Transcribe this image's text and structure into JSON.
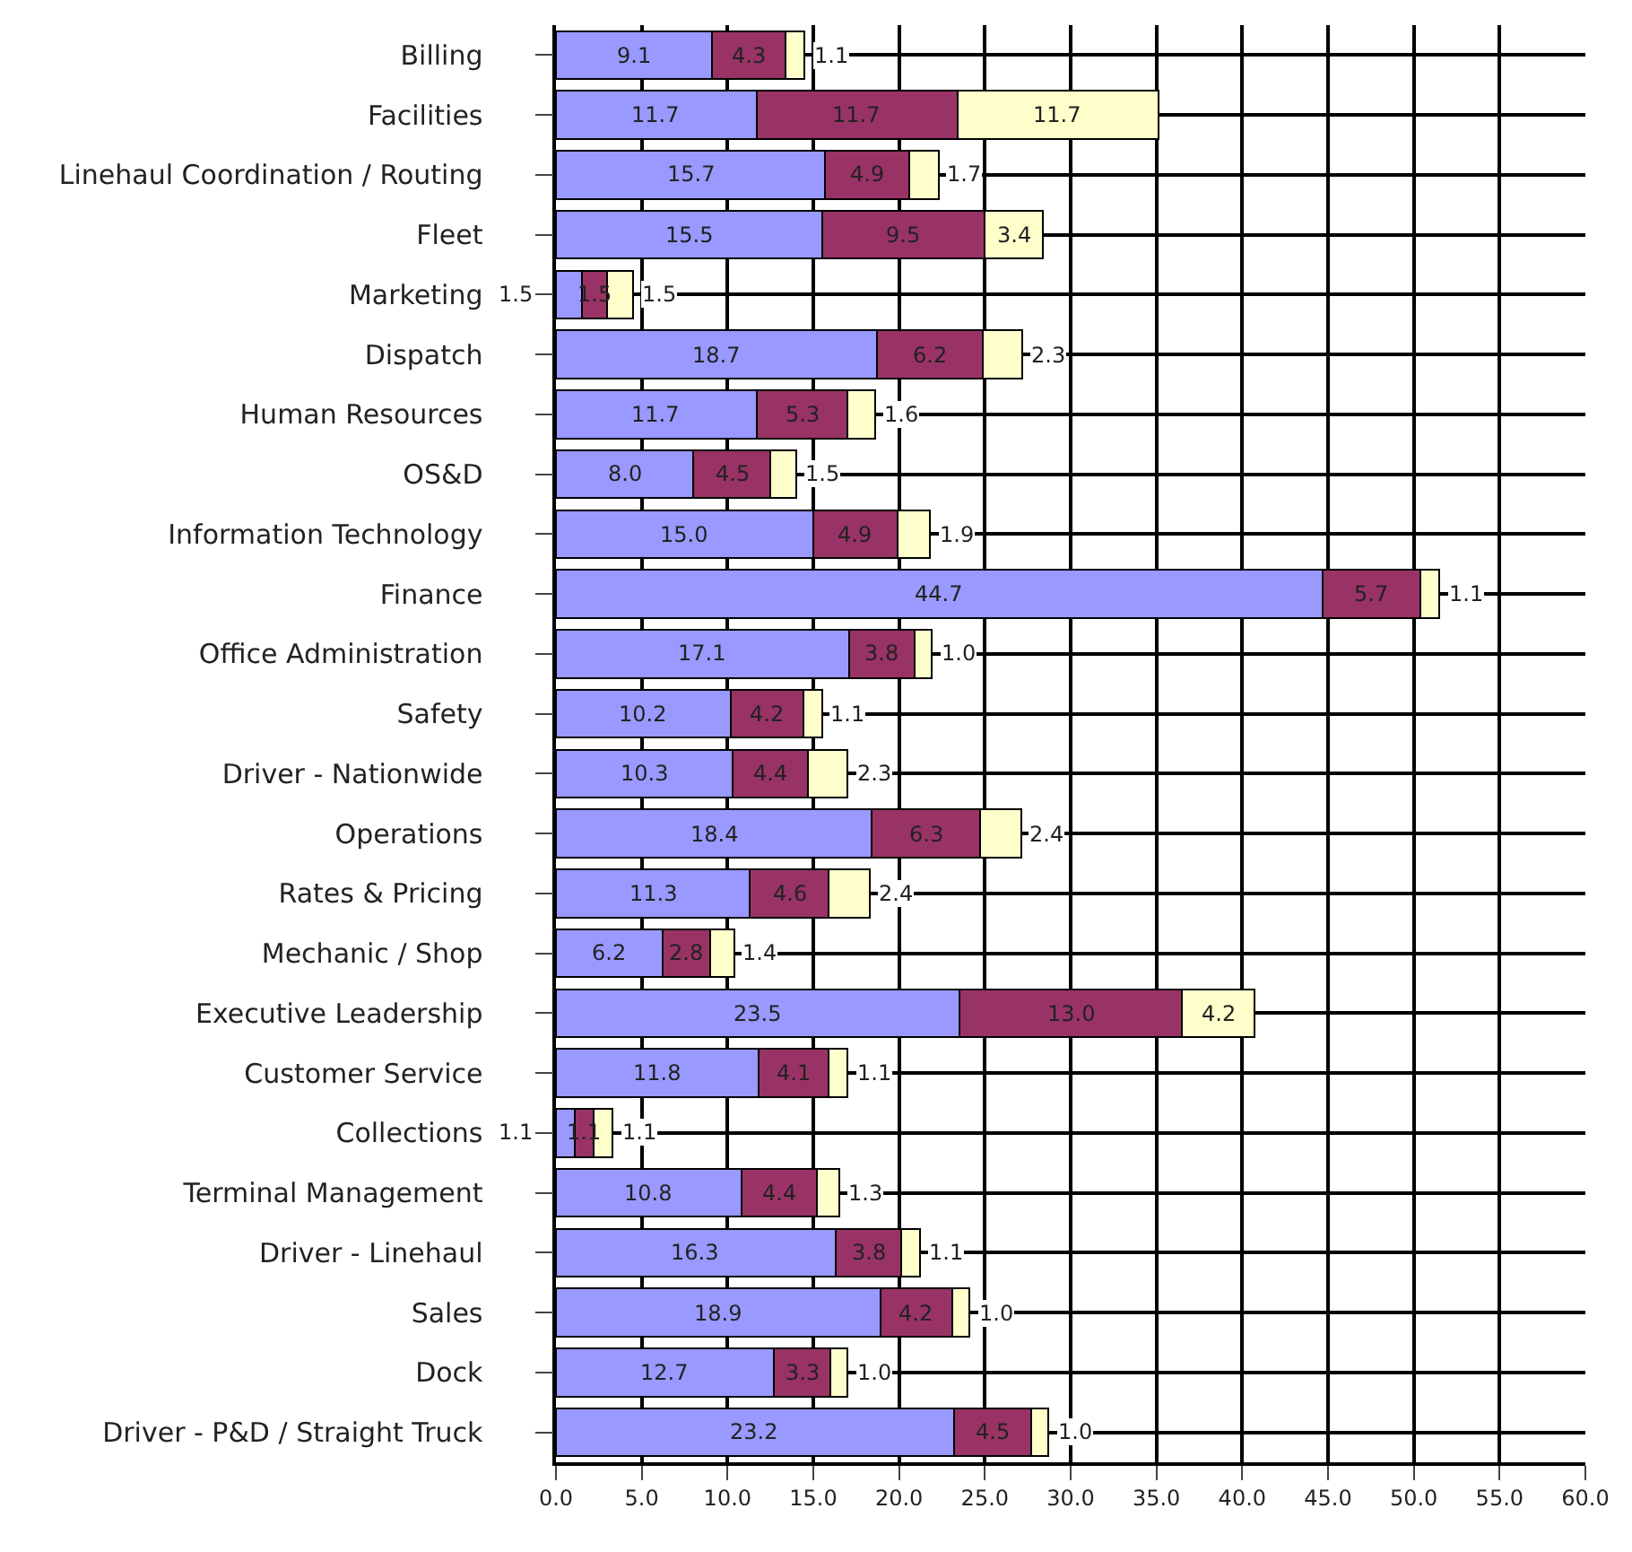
{
  "chart_data": {
    "type": "bar",
    "orientation": "horizontal",
    "stacked": true,
    "grid": true,
    "categories": [
      "Billing",
      "Facilities",
      "Linehaul Coordination / Routing",
      "Fleet",
      "Marketing",
      "Dispatch",
      "Human Resources",
      "OS&D",
      "Information Technology",
      "Finance",
      "Office Administration",
      "Safety",
      "Driver - Nationwide",
      "Operations",
      "Rates & Pricing",
      "Mechanic / Shop",
      "Executive Leadership",
      "Customer Service",
      "Collections",
      "Terminal Management",
      "Driver - Linehaul",
      "Sales",
      "Dock",
      "Driver - P&D / Straight Truck"
    ],
    "series": [
      {
        "color": "#9999ff",
        "values": [
          9.1,
          11.7,
          15.7,
          15.5,
          1.5,
          18.7,
          11.7,
          8.0,
          15.0,
          44.7,
          17.1,
          10.2,
          10.3,
          18.4,
          11.3,
          6.2,
          23.5,
          11.8,
          1.1,
          10.8,
          16.3,
          18.9,
          12.7,
          23.2
        ],
        "value_labels": [
          "9.1",
          "11.7",
          "15.7",
          "15.5",
          "1.5",
          "18.7",
          "11.7",
          "8.0",
          "15.0",
          "44.7",
          "17.1",
          "10.2",
          "10.3",
          "18.4",
          "11.3",
          "6.2",
          "23.5",
          "11.8",
          "1.1",
          "10.8",
          "16.3",
          "18.9",
          "12.7",
          "23.2"
        ]
      },
      {
        "color": "#993366",
        "values": [
          4.3,
          11.7,
          4.9,
          9.5,
          1.5,
          6.2,
          5.3,
          4.5,
          4.9,
          5.7,
          3.8,
          4.2,
          4.4,
          6.3,
          4.6,
          2.8,
          13.0,
          4.1,
          1.1,
          4.4,
          3.8,
          4.2,
          3.3,
          4.5
        ],
        "value_labels": [
          "4.3",
          "11.7",
          "4.9",
          "9.5",
          "1.5",
          "6.2",
          "5.3",
          "4.5",
          "4.9",
          "5.7",
          "3.8",
          "4.2",
          "4.4",
          "6.3",
          "4.6",
          "2.8",
          "13.0",
          "4.1",
          "1.1",
          "4.4",
          "3.8",
          "4.2",
          "3.3",
          "4.5"
        ]
      },
      {
        "color": "#ffffcc",
        "values": [
          1.1,
          11.7,
          1.7,
          3.4,
          1.5,
          2.3,
          1.6,
          1.5,
          1.9,
          1.1,
          1.0,
          1.1,
          2.3,
          2.4,
          2.4,
          1.4,
          4.2,
          1.1,
          1.1,
          1.3,
          1.1,
          1.0,
          1.0,
          1.0
        ],
        "value_labels": [
          "1.1",
          "11.7",
          "1.7",
          "3.4",
          "1.5",
          "2.3",
          "1.6",
          "1.5",
          "1.9",
          "1.1",
          "1.0",
          "1.1",
          "2.3",
          "2.4",
          "2.4",
          "1.4",
          "4.2",
          "1.1",
          "1.1",
          "1.3",
          "1.1",
          "1.0",
          "1.0",
          "1.0"
        ]
      }
    ],
    "xlim": [
      0,
      60
    ],
    "xticks": [
      {
        "value": 0,
        "label": "0.0"
      },
      {
        "value": 5,
        "label": "5.0"
      },
      {
        "value": 10,
        "label": "10.0"
      },
      {
        "value": 15,
        "label": "15.0"
      },
      {
        "value": 20,
        "label": "20.0"
      },
      {
        "value": 25,
        "label": "25.0"
      },
      {
        "value": 30,
        "label": "30.0"
      },
      {
        "value": 35,
        "label": "35.0"
      },
      {
        "value": 40,
        "label": "40.0"
      },
      {
        "value": 45,
        "label": "45.0"
      },
      {
        "value": 50,
        "label": "50.0"
      },
      {
        "value": 55,
        "label": "55.0"
      },
      {
        "value": 60,
        "label": "60.0"
      }
    ]
  }
}
